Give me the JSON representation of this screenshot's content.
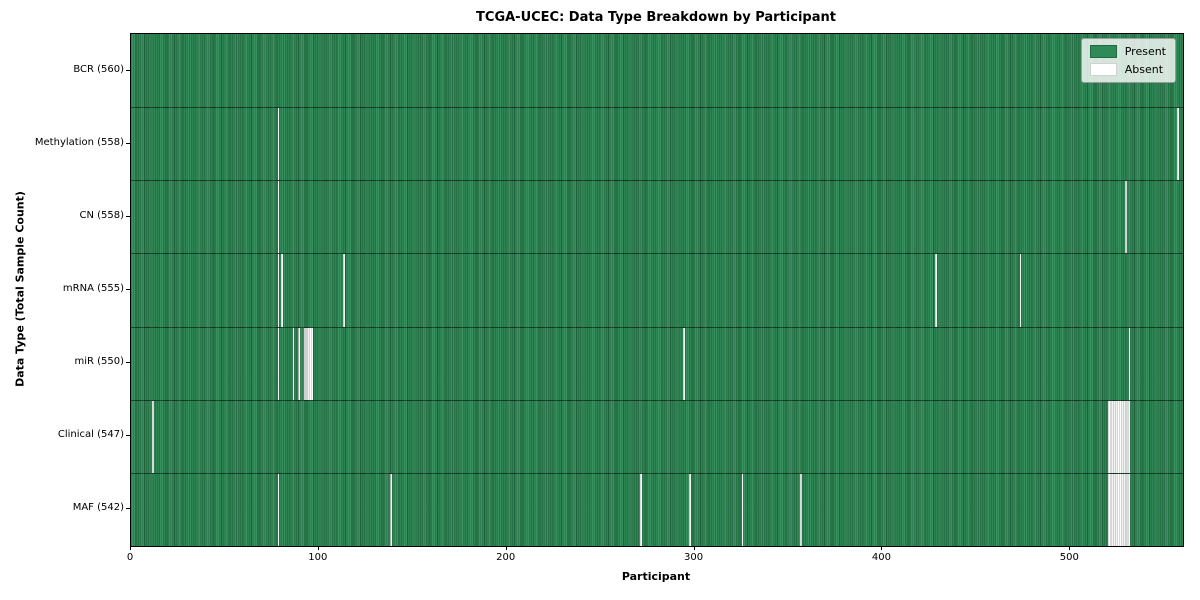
{
  "title": "TCGA-UCEC: Data Type Breakdown by Participant",
  "colors": {
    "present": "#2E8B57",
    "absent": "#ffffff",
    "plot_border": "#000000",
    "row_separator": "rgba(8,24,14,0.65)",
    "legend_background": "rgba(255,255,255,0.8)"
  },
  "chart_data": {
    "type": "heatmap",
    "title": "TCGA-UCEC: Data Type Breakdown by Participant",
    "xlabel": "Participant",
    "ylabel": "Data Type (Total Sample Count)",
    "x_ticks": [
      0,
      100,
      200,
      300,
      400,
      500
    ],
    "xlim": [
      0,
      560
    ],
    "n_participants": 560,
    "grid": false,
    "legend_position": "upper right",
    "legend": [
      {
        "label": "Present",
        "color": "#2E8B57"
      },
      {
        "label": "Absent",
        "color": "#ffffff"
      }
    ],
    "rows": [
      {
        "name": "BCR",
        "label": "BCR (560)",
        "count": 560,
        "absent_participants": []
      },
      {
        "name": "Methylation",
        "label": "Methylation (558)",
        "count": 558,
        "absent_participants": [
          78,
          557
        ]
      },
      {
        "name": "CN",
        "label": "CN (558)",
        "count": 558,
        "absent_participants": [
          78,
          529
        ]
      },
      {
        "name": "mRNA",
        "label": "mRNA (555)",
        "count": 555,
        "absent_participants": [
          78,
          80,
          113,
          428,
          473
        ]
      },
      {
        "name": "miR",
        "label": "miR (550)",
        "count": 550,
        "absent_participants": [
          78,
          86,
          89,
          92,
          93,
          94,
          95,
          96,
          294,
          531
        ]
      },
      {
        "name": "Clinical",
        "label": "Clinical (547)",
        "count": 547,
        "absent_participants": [
          11,
          520,
          521,
          522,
          523,
          524,
          525,
          526,
          527,
          528,
          529,
          530,
          531
        ]
      },
      {
        "name": "MAF",
        "label": "MAF (542)",
        "count": 542,
        "absent_participants": [
          78,
          138,
          271,
          297,
          325,
          356,
          520,
          521,
          522,
          523,
          524,
          525,
          526,
          527,
          528,
          529,
          530,
          531
        ]
      }
    ]
  }
}
